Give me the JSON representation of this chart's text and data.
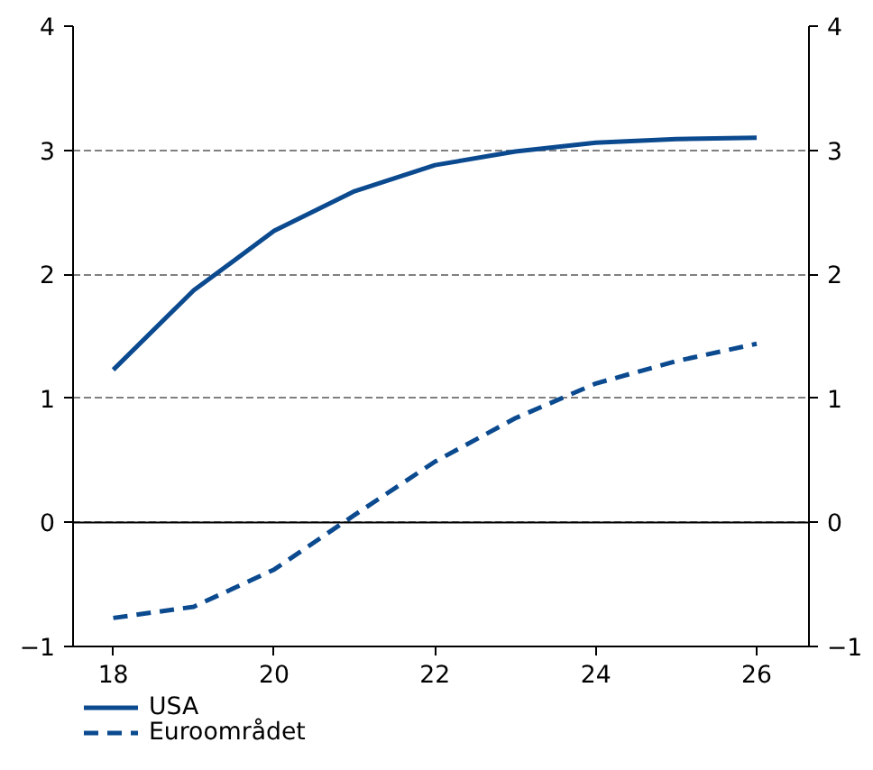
{
  "chart_data": {
    "type": "line",
    "x": [
      18,
      19,
      20,
      21,
      22,
      23,
      24,
      25,
      26
    ],
    "series": [
      {
        "name": "USA",
        "color": "#0b4a8f",
        "values": [
          1.23,
          1.87,
          2.35,
          2.67,
          2.88,
          2.99,
          3.06,
          3.09,
          3.1
        ],
        "line_style": "solid"
      },
      {
        "name": "Euroområdet",
        "color": "#0b4a8f",
        "values": [
          -0.77,
          -0.68,
          -0.38,
          0.06,
          0.49,
          0.84,
          1.12,
          1.3,
          1.44
        ],
        "line_style": "dashed"
      }
    ],
    "xlim": [
      17.5,
      26.65
    ],
    "xticks": [
      18,
      20,
      22,
      24,
      26
    ],
    "ylim": [
      -1,
      4
    ],
    "yticks": [
      -1,
      0,
      1,
      2,
      3,
      4
    ],
    "y2lim": [
      -1,
      4
    ],
    "y2ticks": [
      -1,
      0,
      1,
      2,
      3,
      4
    ],
    "grid": "y",
    "legend": "bottom",
    "ref_lines": [
      {
        "axis": "y",
        "value": 0,
        "color": "#000000",
        "line_style": "solid"
      }
    ]
  }
}
